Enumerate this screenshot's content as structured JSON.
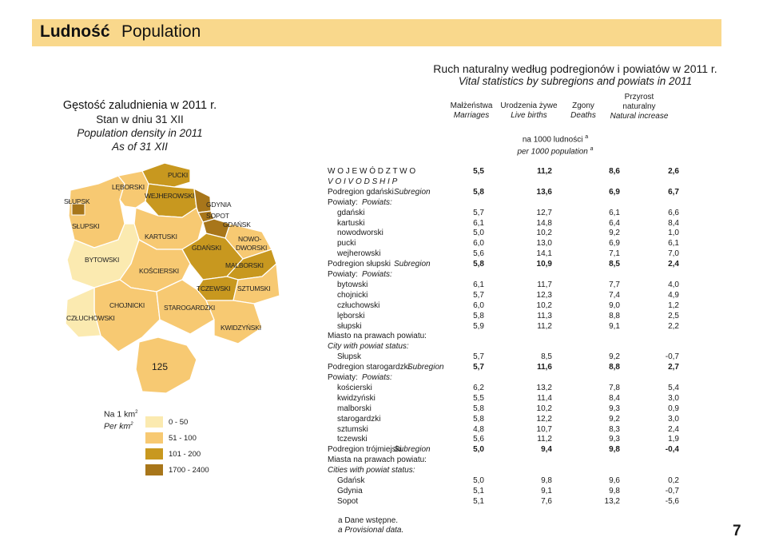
{
  "header": {
    "title_pl": "Ludność",
    "title_en": "Population"
  },
  "left_title": {
    "line1": "Gęstość zaludnienia w 2011 r.",
    "line2": "Stan w dniu 31 XII",
    "line3": "Population density in 2011",
    "line4": "As of 31 XII"
  },
  "table_title": {
    "pl": "Ruch naturalny według podregionów i powiatów w 2011 r.",
    "en": "Vital statistics by subregions and powiats in 2011"
  },
  "columns": [
    {
      "pl": "Małżeństwa",
      "en": "Marriages"
    },
    {
      "pl": "Urodzenia żywe",
      "en": "Live births"
    },
    {
      "pl": "Zgony",
      "en": "Deaths"
    },
    {
      "pl": "Przyrost naturalny",
      "en": "Natural increase"
    }
  ],
  "unit": {
    "pl": "na 1000 ludności",
    "en": "per 1000 population",
    "note": "a"
  },
  "rows": [
    {
      "label": "W O J E W Ó D Z T W O",
      "v": [
        "5,5",
        "11,2",
        "8,6",
        "2,6"
      ]
    },
    {
      "label": "V O I V O D S H I P",
      "v": [
        "",
        "",
        "",
        ""
      ]
    },
    {
      "label": "Podregion gdański",
      "label2": "Subregion",
      "v": [
        "5,8",
        "13,6",
        "6,9",
        "6,7"
      ]
    },
    {
      "label": "Powiaty:",
      "label2": "Powiats:",
      "v": [
        "",
        "",
        "",
        ""
      ]
    },
    {
      "label": "gdański",
      "v": [
        "5,7",
        "12,7",
        "6,1",
        "6,6"
      ]
    },
    {
      "label": "kartuski",
      "v": [
        "6,1",
        "14,8",
        "6,4",
        "8,4"
      ]
    },
    {
      "label": "nowodworski",
      "v": [
        "5,0",
        "10,2",
        "9,2",
        "1,0"
      ]
    },
    {
      "label": "pucki",
      "v": [
        "6,0",
        "13,0",
        "6,9",
        "6,1"
      ]
    },
    {
      "label": "wejherowski",
      "v": [
        "5,6",
        "14,1",
        "7,1",
        "7,0"
      ]
    },
    {
      "label": "Podregion słupski",
      "label2": "Subregion",
      "v": [
        "5,8",
        "10,9",
        "8,5",
        "2,4"
      ]
    },
    {
      "label": "Powiaty:",
      "label2": "Powiats:",
      "v": [
        "",
        "",
        "",
        ""
      ]
    },
    {
      "label": "bytowski",
      "v": [
        "6,1",
        "11,7",
        "7,7",
        "4,0"
      ]
    },
    {
      "label": "chojnicki",
      "v": [
        "5,7",
        "12,3",
        "7,4",
        "4,9"
      ]
    },
    {
      "label": "człuchowski",
      "v": [
        "6,0",
        "10,2",
        "9,0",
        "1,2"
      ]
    },
    {
      "label": "lęborski",
      "v": [
        "5,8",
        "11,3",
        "8,8",
        "2,5"
      ]
    },
    {
      "label": "słupski",
      "v": [
        "5,9",
        "11,2",
        "9,1",
        "2,2"
      ]
    },
    {
      "label": "Miasto na prawach powiatu:",
      "v": [
        "",
        "",
        "",
        ""
      ]
    },
    {
      "label": "City with powiat status:",
      "v": [
        "",
        "",
        "",
        ""
      ]
    },
    {
      "label": "Słupsk",
      "v": [
        "5,7",
        "8,5",
        "9,2",
        "-0,7"
      ]
    },
    {
      "label": "Podregion starogardzki",
      "label2": "Subregion",
      "v": [
        "5,7",
        "11,6",
        "8,8",
        "2,7"
      ]
    },
    {
      "label": "Powiaty:",
      "label2": "Powiats:",
      "v": [
        "",
        "",
        "",
        ""
      ]
    },
    {
      "label": "kościerski",
      "v": [
        "6,2",
        "13,2",
        "7,8",
        "5,4"
      ]
    },
    {
      "label": "kwidzyński",
      "v": [
        "5,5",
        "11,4",
        "8,4",
        "3,0"
      ]
    },
    {
      "label": "malborski",
      "v": [
        "5,8",
        "10,2",
        "9,3",
        "0,9"
      ]
    },
    {
      "label": "starogardzki",
      "v": [
        "5,8",
        "12,2",
        "9,2",
        "3,0"
      ]
    },
    {
      "label": "sztumski",
      "v": [
        "4,8",
        "10,7",
        "8,3",
        "2,4"
      ]
    },
    {
      "label": "tczewski",
      "v": [
        "5,6",
        "11,2",
        "9,3",
        "1,9"
      ]
    },
    {
      "label": "Podregion trójmiejski",
      "label2": "Subregion",
      "v": [
        "5,0",
        "9,4",
        "9,8",
        "-0,4"
      ]
    },
    {
      "label": "Miasta na prawach powiatu:",
      "v": [
        "",
        "",
        "",
        ""
      ]
    },
    {
      "label": "Cities with powiat status:",
      "v": [
        "",
        "",
        "",
        ""
      ]
    },
    {
      "label": "Gdańsk",
      "v": [
        "5,0",
        "9,8",
        "9,6",
        "0,2"
      ]
    },
    {
      "label": "Gdynia",
      "v": [
        "5,1",
        "9,1",
        "9,8",
        "-0,7"
      ]
    },
    {
      "label": "Sopot",
      "v": [
        "5,1",
        "7,6",
        "13,2",
        "-5,6"
      ]
    }
  ],
  "footnote": {
    "pl": "a Dane wstępne.",
    "en": "a Provisional data."
  },
  "map": {
    "labels": [
      "SŁUPSK",
      "LĘBORSKI",
      "PUCKI",
      "WEJHEROWSKI",
      "GDYNIA",
      "SOPOT",
      "GDAŃSK",
      "SŁUPSKI",
      "KARTUSKI",
      "NOWO-",
      "DWORSKI",
      "GDAŃSKI",
      "BYTOWSKI",
      "MALBORSKI",
      "KOŚCIERSKI",
      "TCZEWSKI",
      "SZTUMSKI",
      "CHOJNICKI",
      "STAROGARDZKI",
      "CZŁUCHOWSKI",
      "KWIDZYŃSKI"
    ],
    "inset_value": "125",
    "colors": {
      "c1": "#fbeab0",
      "c2": "#f7c972",
      "c3": "#c8981f",
      "c4": "#a8761a"
    }
  },
  "legend": {
    "unit_pl": "Na 1 km",
    "unit_en": "Per km",
    "sup": "2",
    "items": [
      "0 - 50",
      "51 - 100",
      "101 - 200",
      "1700 - 2400"
    ],
    "colors": [
      "#fbeab0",
      "#f7c972",
      "#c8981f",
      "#a8761a"
    ]
  },
  "page_number": "7"
}
